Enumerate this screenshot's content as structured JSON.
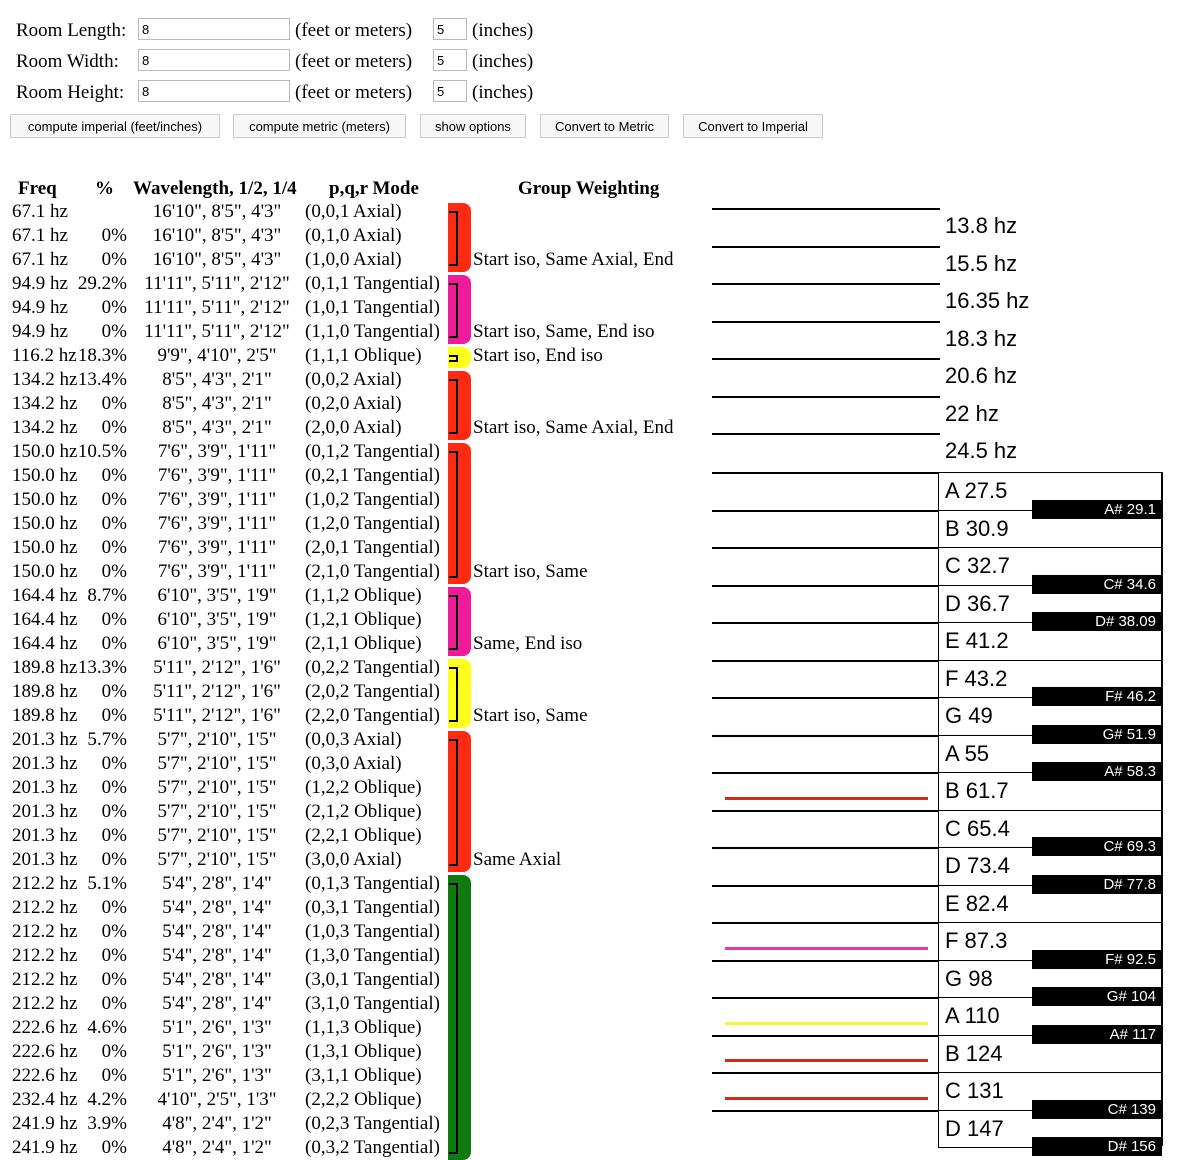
{
  "form": {
    "length": {
      "label": "Room Length:",
      "feet": "8",
      "unit1": "(feet or meters)",
      "inches": "5",
      "unit2": "(inches)"
    },
    "width": {
      "label": "Room Width:",
      "feet": "8",
      "unit1": "(feet or meters)",
      "inches": "5",
      "unit2": "(inches)"
    },
    "height": {
      "label": "Room Height:",
      "feet": "8",
      "unit1": "(feet or meters)",
      "inches": "5",
      "unit2": "(inches)"
    },
    "buttons": [
      "compute imperial (feet/inches)",
      "compute metric (meters)",
      "show options",
      "Convert to Metric",
      "Convert to Imperial"
    ]
  },
  "table": {
    "headers": {
      "freq": "Freq",
      "pct": "%",
      "wavelength": "Wavelength, 1/2, 1/4",
      "mode": "p,q,r Mode",
      "group": "Group Weighting"
    },
    "rows": [
      {
        "freq": "67.1 hz",
        "pct": "",
        "wl": "16'10\", 8'5\", 4'3\"",
        "mode": "(0,0,1 Axial)"
      },
      {
        "freq": "67.1 hz",
        "pct": "0%",
        "wl": "16'10\", 8'5\", 4'3\"",
        "mode": "(0,1,0 Axial)"
      },
      {
        "freq": "67.1 hz",
        "pct": "0%",
        "wl": "16'10\", 8'5\", 4'3\"",
        "mode": "(1,0,0 Axial)"
      },
      {
        "freq": "94.9 hz",
        "pct": "29.2%",
        "wl": "11'11\", 5'11\", 2'12\"",
        "mode": "(0,1,1 Tangential)"
      },
      {
        "freq": "94.9 hz",
        "pct": "0%",
        "wl": "11'11\", 5'11\", 2'12\"",
        "mode": "(1,0,1 Tangential)"
      },
      {
        "freq": "94.9 hz",
        "pct": "0%",
        "wl": "11'11\", 5'11\", 2'12\"",
        "mode": "(1,1,0 Tangential)"
      },
      {
        "freq": "116.2 hz",
        "pct": "18.3%",
        "wl": "9'9\", 4'10\", 2'5\"",
        "mode": "(1,1,1 Oblique)"
      },
      {
        "freq": "134.2 hz",
        "pct": "13.4%",
        "wl": "8'5\", 4'3\", 2'1\"",
        "mode": "(0,0,2 Axial)"
      },
      {
        "freq": "134.2 hz",
        "pct": "0%",
        "wl": "8'5\", 4'3\", 2'1\"",
        "mode": "(0,2,0 Axial)"
      },
      {
        "freq": "134.2 hz",
        "pct": "0%",
        "wl": "8'5\", 4'3\", 2'1\"",
        "mode": "(2,0,0 Axial)"
      },
      {
        "freq": "150.0 hz",
        "pct": "10.5%",
        "wl": "7'6\", 3'9\", 1'11\"",
        "mode": "(0,1,2 Tangential)"
      },
      {
        "freq": "150.0 hz",
        "pct": "0%",
        "wl": "7'6\", 3'9\", 1'11\"",
        "mode": "(0,2,1 Tangential)"
      },
      {
        "freq": "150.0 hz",
        "pct": "0%",
        "wl": "7'6\", 3'9\", 1'11\"",
        "mode": "(1,0,2 Tangential)"
      },
      {
        "freq": "150.0 hz",
        "pct": "0%",
        "wl": "7'6\", 3'9\", 1'11\"",
        "mode": "(1,2,0 Tangential)"
      },
      {
        "freq": "150.0 hz",
        "pct": "0%",
        "wl": "7'6\", 3'9\", 1'11\"",
        "mode": "(2,0,1 Tangential)"
      },
      {
        "freq": "150.0 hz",
        "pct": "0%",
        "wl": "7'6\", 3'9\", 1'11\"",
        "mode": "(2,1,0 Tangential)"
      },
      {
        "freq": "164.4 hz",
        "pct": "8.7%",
        "wl": "6'10\", 3'5\", 1'9\"",
        "mode": "(1,1,2 Oblique)"
      },
      {
        "freq": "164.4 hz",
        "pct": "0%",
        "wl": "6'10\", 3'5\", 1'9\"",
        "mode": "(1,2,1 Oblique)"
      },
      {
        "freq": "164.4 hz",
        "pct": "0%",
        "wl": "6'10\", 3'5\", 1'9\"",
        "mode": "(2,1,1 Oblique)"
      },
      {
        "freq": "189.8 hz",
        "pct": "13.3%",
        "wl": "5'11\", 2'12\", 1'6\"",
        "mode": "(0,2,2 Tangential)"
      },
      {
        "freq": "189.8 hz",
        "pct": "0%",
        "wl": "5'11\", 2'12\", 1'6\"",
        "mode": "(2,0,2 Tangential)"
      },
      {
        "freq": "189.8 hz",
        "pct": "0%",
        "wl": "5'11\", 2'12\", 1'6\"",
        "mode": "(2,2,0 Tangential)"
      },
      {
        "freq": "201.3 hz",
        "pct": "5.7%",
        "wl": "5'7\", 2'10\", 1'5\"",
        "mode": "(0,0,3 Axial)"
      },
      {
        "freq": "201.3 hz",
        "pct": "0%",
        "wl": "5'7\", 2'10\", 1'5\"",
        "mode": "(0,3,0 Axial)"
      },
      {
        "freq": "201.3 hz",
        "pct": "0%",
        "wl": "5'7\", 2'10\", 1'5\"",
        "mode": "(1,2,2 Oblique)"
      },
      {
        "freq": "201.3 hz",
        "pct": "0%",
        "wl": "5'7\", 2'10\", 1'5\"",
        "mode": "(2,1,2 Oblique)"
      },
      {
        "freq": "201.3 hz",
        "pct": "0%",
        "wl": "5'7\", 2'10\", 1'5\"",
        "mode": "(2,2,1 Oblique)"
      },
      {
        "freq": "201.3 hz",
        "pct": "0%",
        "wl": "5'7\", 2'10\", 1'5\"",
        "mode": "(3,0,0 Axial)"
      },
      {
        "freq": "212.2 hz",
        "pct": "5.1%",
        "wl": "5'4\", 2'8\", 1'4\"",
        "mode": "(0,1,3 Tangential)"
      },
      {
        "freq": "212.2 hz",
        "pct": "0%",
        "wl": "5'4\", 2'8\", 1'4\"",
        "mode": "(0,3,1 Tangential)"
      },
      {
        "freq": "212.2 hz",
        "pct": "0%",
        "wl": "5'4\", 2'8\", 1'4\"",
        "mode": "(1,0,3 Tangential)"
      },
      {
        "freq": "212.2 hz",
        "pct": "0%",
        "wl": "5'4\", 2'8\", 1'4\"",
        "mode": "(1,3,0 Tangential)"
      },
      {
        "freq": "212.2 hz",
        "pct": "0%",
        "wl": "5'4\", 2'8\", 1'4\"",
        "mode": "(3,0,1 Tangential)"
      },
      {
        "freq": "212.2 hz",
        "pct": "0%",
        "wl": "5'4\", 2'8\", 1'4\"",
        "mode": "(3,1,0 Tangential)"
      },
      {
        "freq": "222.6 hz",
        "pct": "4.6%",
        "wl": "5'1\", 2'6\", 1'3\"",
        "mode": "(1,1,3 Oblique)"
      },
      {
        "freq": "222.6 hz",
        "pct": "0%",
        "wl": "5'1\", 2'6\", 1'3\"",
        "mode": "(1,3,1 Oblique)"
      },
      {
        "freq": "222.6 hz",
        "pct": "0%",
        "wl": "5'1\", 2'6\", 1'3\"",
        "mode": "(3,1,1 Oblique)"
      },
      {
        "freq": "232.4 hz",
        "pct": "4.2%",
        "wl": "4'10\", 2'5\", 1'3\"",
        "mode": "(2,2,2 Oblique)"
      },
      {
        "freq": "241.9 hz",
        "pct": "3.9%",
        "wl": "4'8\", 2'4\", 1'2\"",
        "mode": "(0,2,3 Tangential)"
      },
      {
        "freq": "241.9 hz",
        "pct": "0%",
        "wl": "4'8\", 2'4\", 1'2\"",
        "mode": "(0,3,2 Tangential)"
      }
    ],
    "groups": [
      {
        "start": 0,
        "count": 3,
        "color": "#ff2a12",
        "label": "Start iso, Same Axial, End"
      },
      {
        "start": 3,
        "count": 3,
        "color": "#ee1c98",
        "label": "Start iso, Same, End iso"
      },
      {
        "start": 6,
        "count": 1,
        "color": "#ffff1e",
        "label": "Start iso, End iso"
      },
      {
        "start": 7,
        "count": 3,
        "color": "#ff2a12",
        "label": "Start iso, Same Axial, End"
      },
      {
        "start": 10,
        "count": 6,
        "color": "#ff2a12",
        "label": "Start iso, Same"
      },
      {
        "start": 16,
        "count": 3,
        "color": "#ee1c98",
        "label": "Same, End iso"
      },
      {
        "start": 19,
        "count": 3,
        "color": "#ffff1e",
        "label": "Start iso, Same"
      },
      {
        "start": 22,
        "count": 6,
        "color": "#ff2a12",
        "label": "Same Axial"
      },
      {
        "start": 28,
        "count": 12,
        "color": "#0f7a0f",
        "label": ""
      }
    ]
  },
  "keyboard": {
    "sub_keys": [
      "13.8 hz",
      "15.5 hz",
      "16.35 hz",
      "18.3 hz",
      "20.6 hz",
      "22 hz",
      "24.5 hz"
    ],
    "white_keys": [
      "A 27.5",
      "B 30.9",
      "C 32.7",
      "D 36.7",
      "E 41.2",
      "F 43.2",
      "G 49",
      "A 55",
      "B 61.7",
      "C 65.4",
      "D 73.4",
      "E 82.4",
      "F 87.3",
      "G 98",
      "A 110",
      "B 124",
      "C 131",
      "D 147"
    ],
    "black_keys": [
      {
        "after": 0,
        "label": "A# 29.1"
      },
      {
        "after": 2,
        "label": "C# 34.6"
      },
      {
        "after": 3,
        "label": "D# 38.09"
      },
      {
        "after": 5,
        "label": "F# 46.2"
      },
      {
        "after": 6,
        "label": "G# 51.9"
      },
      {
        "after": 7,
        "label": "A# 58.3"
      },
      {
        "after": 9,
        "label": "C# 69.3"
      },
      {
        "after": 10,
        "label": "D# 77.8"
      },
      {
        "after": 12,
        "label": "F# 92.5"
      },
      {
        "after": 13,
        "label": "G# 104"
      },
      {
        "after": 14,
        "label": "A# 117"
      },
      {
        "after": 16,
        "label": "C# 139"
      },
      {
        "after": 17,
        "label": "D# 156"
      }
    ],
    "markers": [
      {
        "before_white": 9,
        "color": "#d42a18"
      },
      {
        "before_white": 13,
        "color": "#e23aa6"
      },
      {
        "before_white": 15,
        "color": "#f5f53c"
      },
      {
        "before_white": 16,
        "color": "#d42a18"
      },
      {
        "before_white": 17,
        "color": "#d42a18"
      }
    ]
  }
}
